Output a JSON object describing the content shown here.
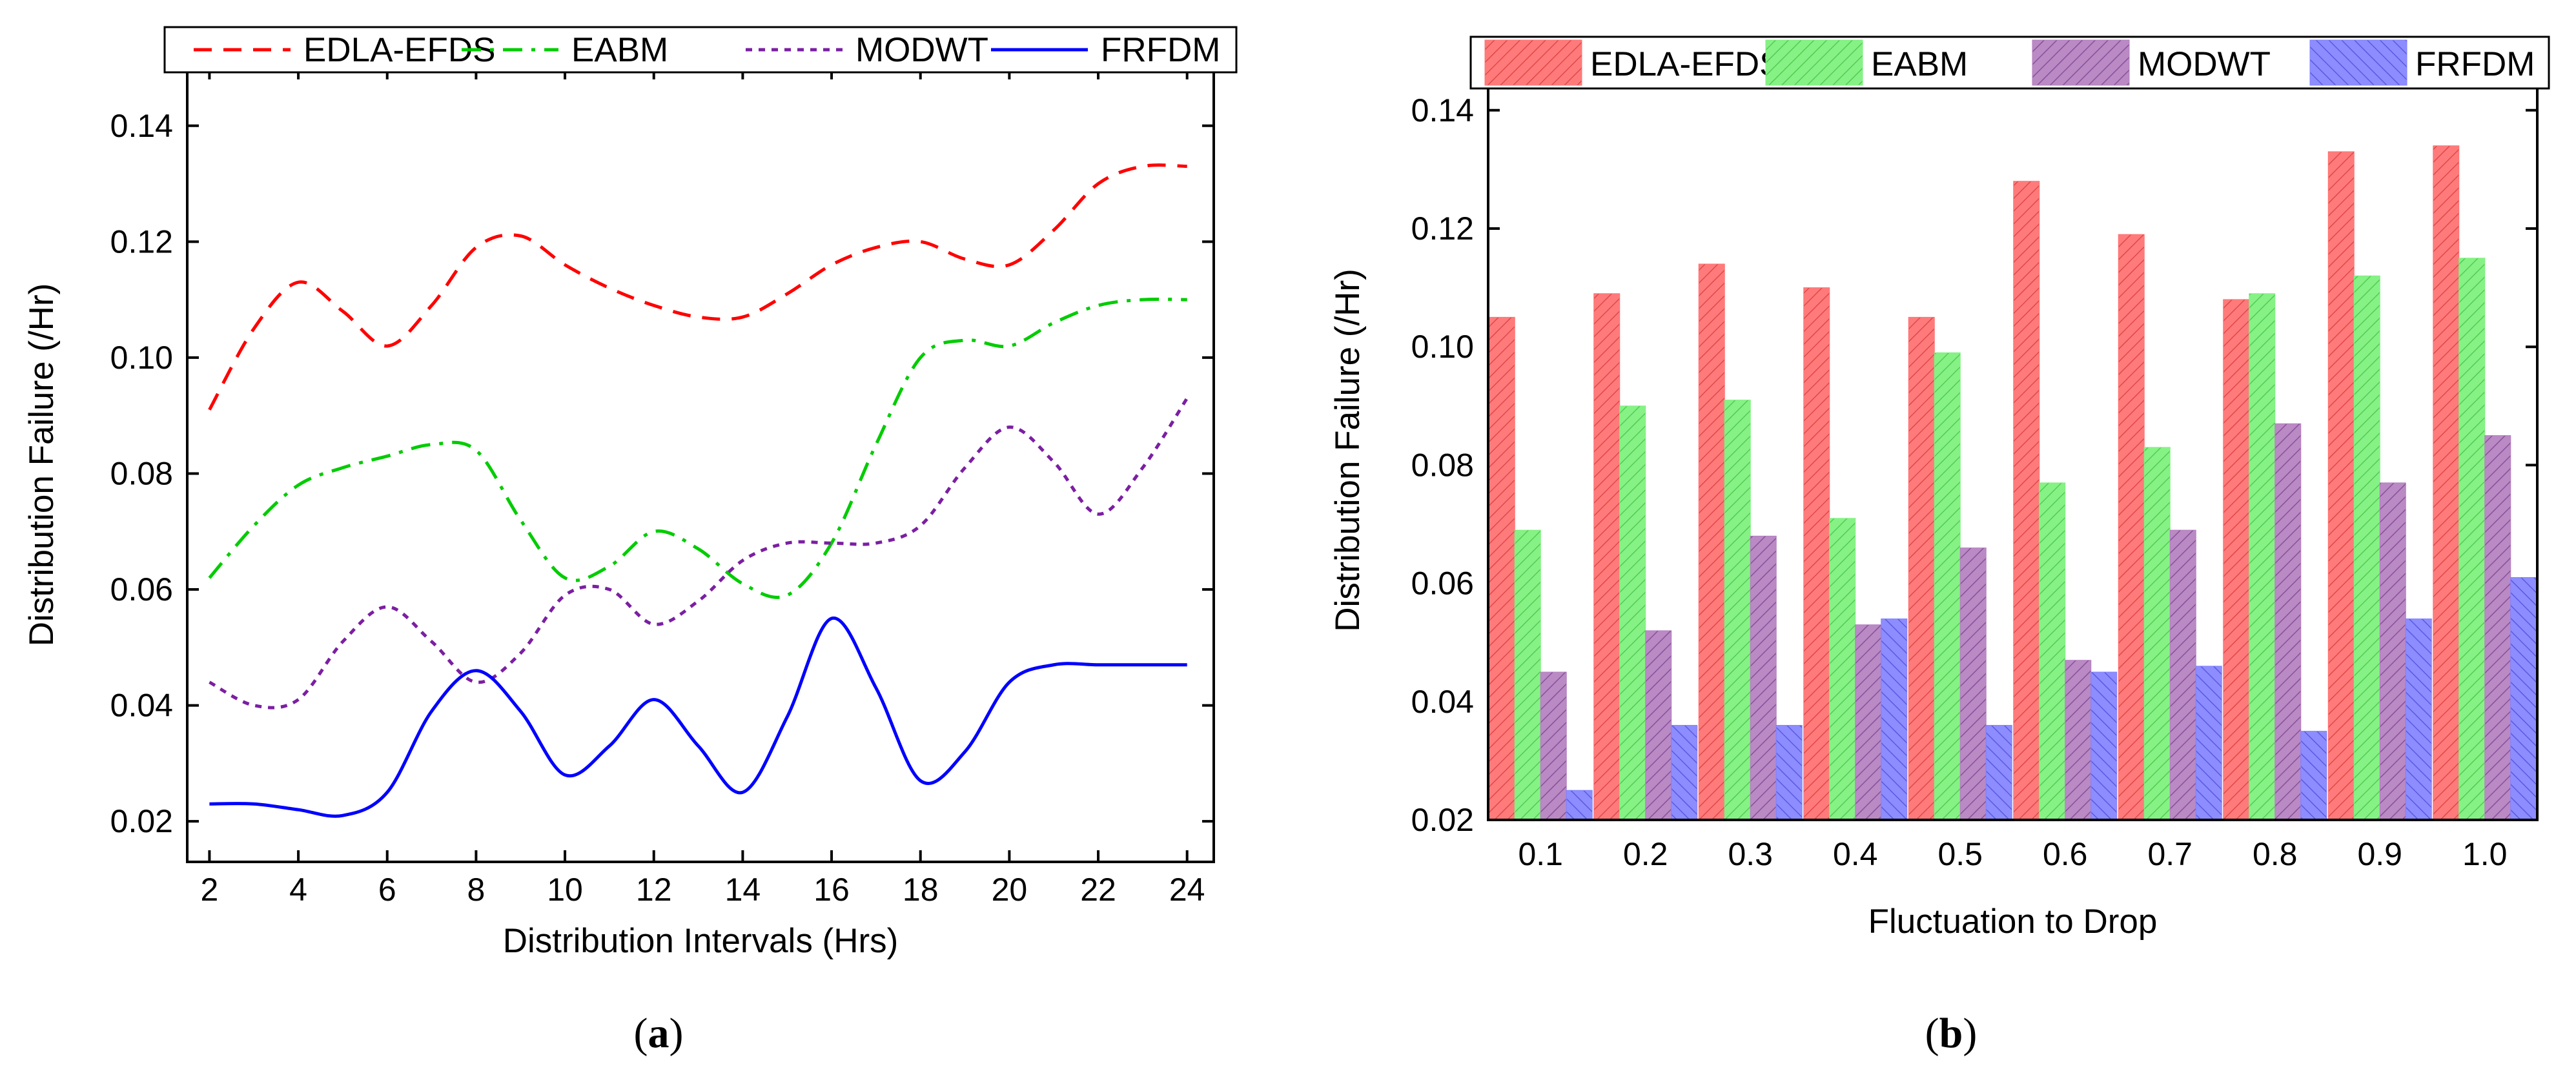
{
  "chart_data": [
    {
      "panel": "a",
      "type": "line",
      "xlabel": "Distribution Intervals (Hrs)",
      "ylabel": "Distribution Failure (/Hr)",
      "xlim": [
        1.5,
        24.6
      ],
      "ylim": [
        0.013,
        0.15
      ],
      "xticks": [
        2,
        4,
        6,
        8,
        10,
        12,
        14,
        16,
        18,
        20,
        22,
        24
      ],
      "xtick_labels": [
        "2",
        "4",
        "6",
        "8",
        "10",
        "12",
        "14",
        "16",
        "18",
        "20",
        "22",
        "24"
      ],
      "yticks": [
        0.02,
        0.04,
        0.06,
        0.08,
        0.1,
        0.12,
        0.14
      ],
      "ytick_labels": [
        "0.02",
        "0.04",
        "0.06",
        "0.08",
        "0.10",
        "0.12",
        "0.14"
      ],
      "legend": "top",
      "series": [
        {
          "name": "EDLA-EFDS",
          "color": "#ff0000",
          "dash": "dash",
          "x": [
            2,
            3,
            4,
            5,
            6,
            7,
            8,
            9,
            10,
            11,
            12,
            13,
            14,
            15,
            16,
            17,
            18,
            19,
            20,
            21,
            22,
            23,
            24
          ],
          "y": [
            0.091,
            0.105,
            0.113,
            0.108,
            0.102,
            0.109,
            0.119,
            0.121,
            0.116,
            0.112,
            0.109,
            0.107,
            0.107,
            0.111,
            0.116,
            0.119,
            0.12,
            0.117,
            0.116,
            0.122,
            0.13,
            0.133,
            0.133
          ]
        },
        {
          "name": "EABM",
          "color": "#00cc00",
          "dash": "dashdot",
          "x": [
            2,
            3,
            4,
            5,
            6,
            7,
            8,
            9,
            10,
            11,
            12,
            13,
            14,
            15,
            16,
            17,
            18,
            19,
            20,
            21,
            22,
            23,
            24
          ],
          "y": [
            0.062,
            0.071,
            0.078,
            0.081,
            0.083,
            0.085,
            0.084,
            0.072,
            0.062,
            0.064,
            0.07,
            0.067,
            0.061,
            0.059,
            0.068,
            0.085,
            0.1,
            0.103,
            0.102,
            0.106,
            0.109,
            0.11,
            0.11
          ]
        },
        {
          "name": "MODWT",
          "color": "#7b1fa2",
          "dash": "dot",
          "x": [
            2,
            3,
            4,
            5,
            6,
            7,
            8,
            9,
            10,
            11,
            12,
            13,
            14,
            15,
            16,
            17,
            18,
            19,
            20,
            21,
            22,
            23,
            24
          ],
          "y": [
            0.044,
            0.04,
            0.041,
            0.051,
            0.057,
            0.051,
            0.044,
            0.049,
            0.059,
            0.06,
            0.054,
            0.058,
            0.065,
            0.068,
            0.068,
            0.068,
            0.071,
            0.081,
            0.088,
            0.082,
            0.073,
            0.081,
            0.093
          ]
        },
        {
          "name": "FRFDM",
          "color": "#0000ff",
          "dash": "solid",
          "x": [
            2,
            3,
            4,
            5,
            6,
            7,
            8,
            9,
            10,
            11,
            12,
            13,
            14,
            15,
            16,
            17,
            18,
            19,
            20,
            21,
            22,
            23,
            24
          ],
          "y": [
            0.023,
            0.023,
            0.022,
            0.021,
            0.025,
            0.039,
            0.046,
            0.039,
            0.028,
            0.033,
            0.041,
            0.033,
            0.025,
            0.038,
            0.055,
            0.043,
            0.027,
            0.032,
            0.044,
            0.047,
            0.047,
            0.047,
            0.047
          ]
        }
      ]
    },
    {
      "panel": "b",
      "type": "bar",
      "xlabel": "Fluctuation to Drop",
      "ylabel": "Distribution Failure (/Hr)",
      "categories": [
        "0.1",
        "0.2",
        "0.3",
        "0.4",
        "0.5",
        "0.6",
        "0.7",
        "0.8",
        "0.9",
        "1.0"
      ],
      "ylim": [
        0.02,
        0.145
      ],
      "yticks": [
        0.02,
        0.04,
        0.06,
        0.08,
        0.1,
        0.12,
        0.14
      ],
      "ytick_labels": [
        "0.02",
        "0.04",
        "0.06",
        "0.08",
        "0.10",
        "0.12",
        "0.14"
      ],
      "legend": "top",
      "series": [
        {
          "name": "EDLA-EFDS",
          "color": "#ff7373",
          "values": [
            0.105,
            0.109,
            0.114,
            0.11,
            0.105,
            0.128,
            0.119,
            0.108,
            0.133,
            0.134
          ]
        },
        {
          "name": "EABM",
          "color": "#80f080",
          "values": [
            0.069,
            0.09,
            0.091,
            0.071,
            0.099,
            0.077,
            0.083,
            0.109,
            0.112,
            0.115
          ]
        },
        {
          "name": "MODWT",
          "color": "#b47fc0",
          "values": [
            0.045,
            0.052,
            0.068,
            0.053,
            0.066,
            0.047,
            0.069,
            0.087,
            0.077,
            0.085
          ]
        },
        {
          "name": "FRFDM",
          "color": "#8080ff",
          "values": [
            0.025,
            0.036,
            0.036,
            0.054,
            0.036,
            0.045,
            0.046,
            0.035,
            0.054,
            0.061
          ]
        }
      ]
    }
  ],
  "labels": {
    "a_open": "(",
    "a_letter": "a",
    "a_close": ")",
    "b_open": "(",
    "b_letter": "b",
    "b_close": ")"
  }
}
